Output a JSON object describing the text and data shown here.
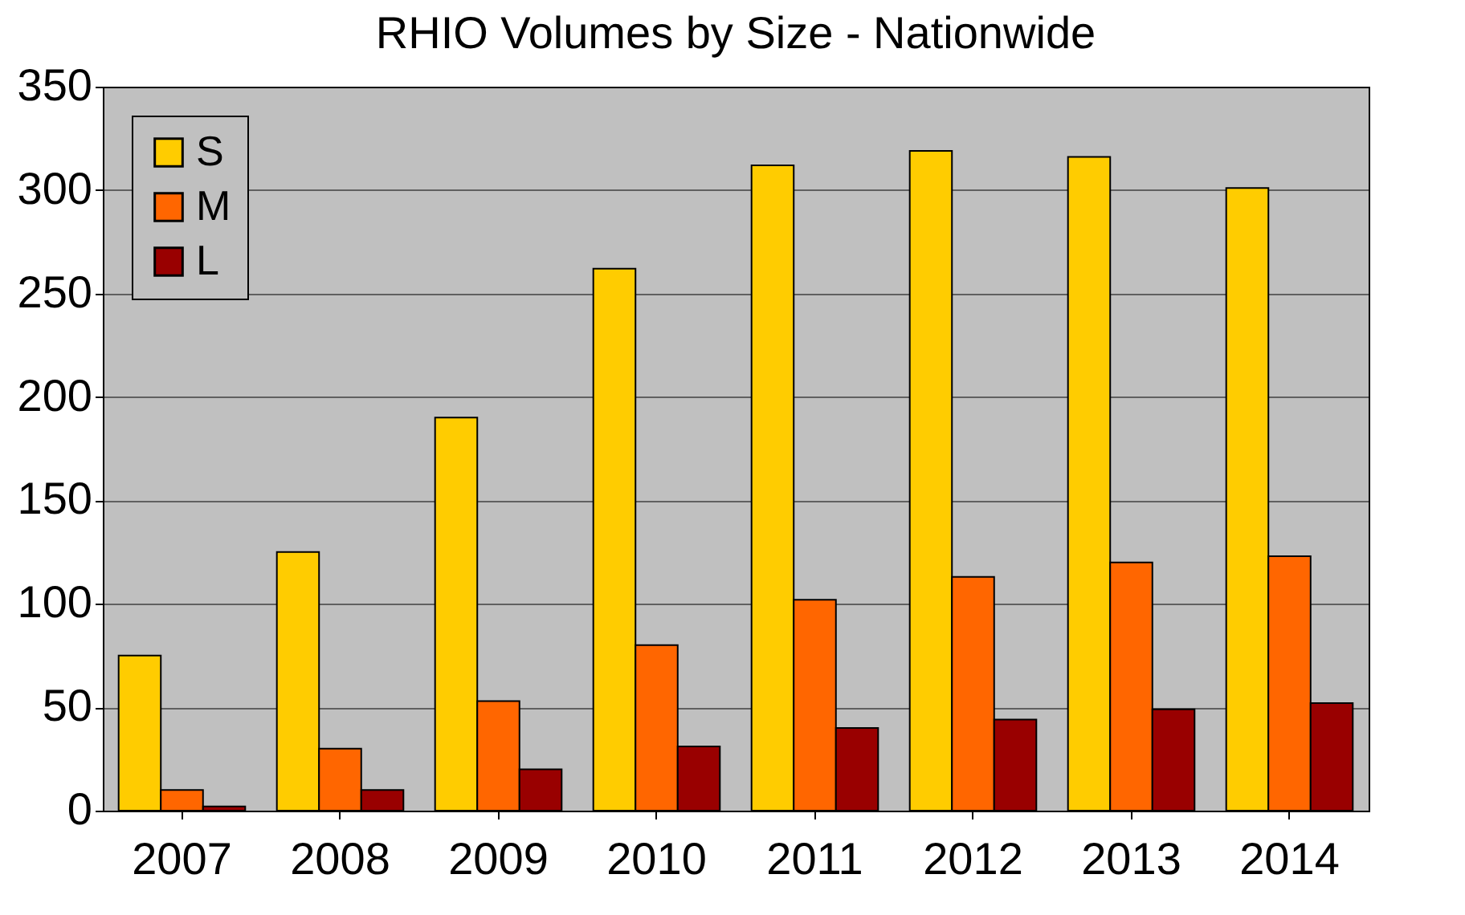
{
  "chart_data": {
    "type": "bar",
    "title": "RHIO Volumes by Size - Nationwide",
    "categories": [
      "2007",
      "2008",
      "2009",
      "2010",
      "2011",
      "2012",
      "2013",
      "2014"
    ],
    "series": [
      {
        "name": "S",
        "color": "#ffcc00",
        "values": [
          75,
          125,
          190,
          262,
          312,
          319,
          316,
          301
        ]
      },
      {
        "name": "M",
        "color": "#ff6600",
        "values": [
          10,
          30,
          53,
          80,
          102,
          113,
          120,
          123
        ]
      },
      {
        "name": "L",
        "color": "#990000",
        "values": [
          2,
          10,
          20,
          31,
          40,
          44,
          49,
          52
        ]
      }
    ],
    "ylim": [
      0,
      350
    ],
    "yticks": [
      0,
      50,
      100,
      150,
      200,
      250,
      300,
      350
    ],
    "grid": "y",
    "legend": "top left"
  }
}
